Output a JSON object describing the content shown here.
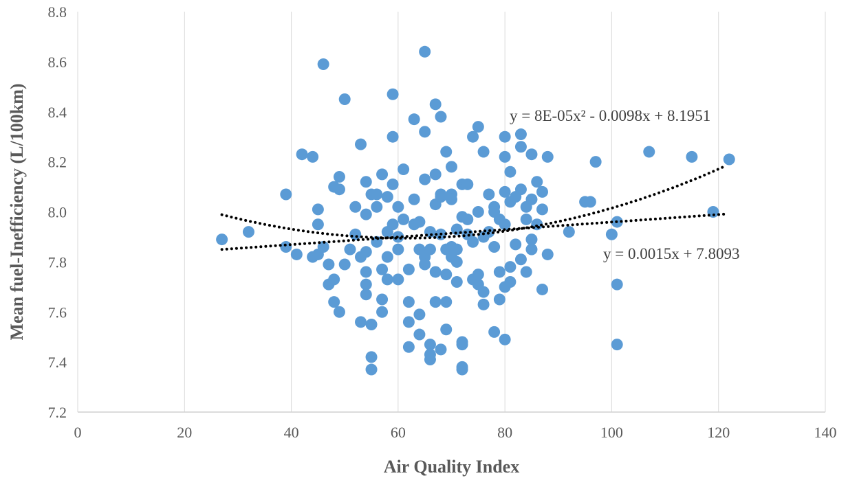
{
  "chart_data": {
    "type": "scatter",
    "title": "",
    "xlabel": "Air Quality Index",
    "ylabel": "Mean fuel-Inefficiency (L/100km)",
    "xlim": [
      0,
      140
    ],
    "ylim": [
      7.2,
      8.8
    ],
    "x_ticks": [
      "0",
      "20",
      "40",
      "60",
      "80",
      "100",
      "120",
      "140"
    ],
    "y_ticks": [
      "7.2",
      "7.4",
      "7.6",
      "7.8",
      "8.0",
      "8.2",
      "8.4",
      "8.6",
      "8.8"
    ],
    "grid": "vertical",
    "legend": "none",
    "point_color": "#5B9BD5",
    "points": [
      [
        27,
        7.89
      ],
      [
        32,
        7.92
      ],
      [
        39,
        7.86
      ],
      [
        39,
        8.07
      ],
      [
        41,
        7.83
      ],
      [
        42,
        8.23
      ],
      [
        44,
        8.22
      ],
      [
        44,
        7.82
      ],
      [
        45,
        7.95
      ],
      [
        45,
        8.01
      ],
      [
        45,
        7.83
      ],
      [
        46,
        7.86
      ],
      [
        46,
        8.59
      ],
      [
        47,
        7.71
      ],
      [
        47,
        7.79
      ],
      [
        48,
        7.73
      ],
      [
        48,
        7.64
      ],
      [
        48,
        8.1
      ],
      [
        49,
        8.09
      ],
      [
        49,
        8.14
      ],
      [
        49,
        7.6
      ],
      [
        50,
        7.79
      ],
      [
        50,
        8.45
      ],
      [
        51,
        7.85
      ],
      [
        52,
        8.02
      ],
      [
        52,
        7.91
      ],
      [
        53,
        7.82
      ],
      [
        53,
        7.56
      ],
      [
        53,
        8.27
      ],
      [
        54,
        8.12
      ],
      [
        54,
        7.99
      ],
      [
        54,
        7.84
      ],
      [
        54,
        7.71
      ],
      [
        54,
        7.76
      ],
      [
        54,
        7.67
      ],
      [
        55,
        7.55
      ],
      [
        55,
        7.42
      ],
      [
        55,
        7.37
      ],
      [
        55,
        8.07
      ],
      [
        56,
        8.02
      ],
      [
        56,
        8.07
      ],
      [
        56,
        7.88
      ],
      [
        57,
        7.65
      ],
      [
        57,
        7.6
      ],
      [
        57,
        8.15
      ],
      [
        57,
        7.77
      ],
      [
        58,
        8.06
      ],
      [
        58,
        7.92
      ],
      [
        58,
        7.82
      ],
      [
        58,
        7.73
      ],
      [
        59,
        8.47
      ],
      [
        59,
        8.3
      ],
      [
        59,
        8.11
      ],
      [
        59,
        7.95
      ],
      [
        60,
        8.02
      ],
      [
        60,
        7.9
      ],
      [
        60,
        7.85
      ],
      [
        60,
        7.73
      ],
      [
        61,
        8.17
      ],
      [
        61,
        7.97
      ],
      [
        62,
        7.46
      ],
      [
        62,
        7.64
      ],
      [
        62,
        7.77
      ],
      [
        62,
        7.56
      ],
      [
        63,
        8.37
      ],
      [
        63,
        8.05
      ],
      [
        63,
        7.95
      ],
      [
        64,
        7.59
      ],
      [
        64,
        7.85
      ],
      [
        64,
        7.96
      ],
      [
        64,
        7.51
      ],
      [
        65,
        8.32
      ],
      [
        65,
        8.13
      ],
      [
        65,
        7.82
      ],
      [
        65,
        7.79
      ],
      [
        65,
        8.64
      ],
      [
        66,
        7.41
      ],
      [
        66,
        7.92
      ],
      [
        66,
        7.85
      ],
      [
        66,
        7.47
      ],
      [
        66,
        7.43
      ],
      [
        67,
        7.64
      ],
      [
        67,
        8.15
      ],
      [
        67,
        8.03
      ],
      [
        67,
        7.76
      ],
      [
        67,
        8.43
      ],
      [
        68,
        8.06
      ],
      [
        68,
        8.07
      ],
      [
        68,
        7.91
      ],
      [
        68,
        7.45
      ],
      [
        68,
        8.38
      ],
      [
        69,
        7.53
      ],
      [
        69,
        7.85
      ],
      [
        69,
        8.24
      ],
      [
        69,
        7.64
      ],
      [
        69,
        7.75
      ],
      [
        70,
        8.18
      ],
      [
        70,
        8.07
      ],
      [
        70,
        8.05
      ],
      [
        70,
        7.86
      ],
      [
        70,
        7.82
      ],
      [
        71,
        7.93
      ],
      [
        71,
        7.72
      ],
      [
        71,
        7.8
      ],
      [
        71,
        7.85
      ],
      [
        72,
        8.11
      ],
      [
        72,
        7.98
      ],
      [
        72,
        7.47
      ],
      [
        72,
        7.48
      ],
      [
        72,
        7.37
      ],
      [
        72,
        7.38
      ],
      [
        73,
        8.11
      ],
      [
        73,
        7.97
      ],
      [
        73,
        7.91
      ],
      [
        74,
        8.3
      ],
      [
        74,
        7.73
      ],
      [
        74,
        7.88
      ],
      [
        75,
        8.34
      ],
      [
        75,
        7.75
      ],
      [
        75,
        8.0
      ],
      [
        75,
        7.71
      ],
      [
        76,
        7.9
      ],
      [
        76,
        7.68
      ],
      [
        76,
        7.63
      ],
      [
        76,
        8.24
      ],
      [
        77,
        8.07
      ],
      [
        77,
        7.92
      ],
      [
        78,
        8.02
      ],
      [
        78,
        8.0
      ],
      [
        78,
        7.86
      ],
      [
        78,
        7.52
      ],
      [
        79,
        7.65
      ],
      [
        79,
        7.76
      ],
      [
        79,
        7.97
      ],
      [
        80,
        8.22
      ],
      [
        80,
        8.3
      ],
      [
        80,
        8.08
      ],
      [
        80,
        7.95
      ],
      [
        80,
        7.49
      ],
      [
        80,
        7.7
      ],
      [
        81,
        8.16
      ],
      [
        81,
        7.78
      ],
      [
        81,
        8.04
      ],
      [
        81,
        7.72
      ],
      [
        82,
        7.87
      ],
      [
        82,
        8.06
      ],
      [
        83,
        8.31
      ],
      [
        83,
        8.26
      ],
      [
        83,
        7.81
      ],
      [
        83,
        8.09
      ],
      [
        84,
        7.97
      ],
      [
        84,
        8.02
      ],
      [
        84,
        7.76
      ],
      [
        85,
        8.23
      ],
      [
        85,
        8.05
      ],
      [
        85,
        7.89
      ],
      [
        85,
        7.85
      ],
      [
        86,
        7.95
      ],
      [
        86,
        8.12
      ],
      [
        87,
        8.08
      ],
      [
        87,
        8.01
      ],
      [
        87,
        7.69
      ],
      [
        88,
        8.22
      ],
      [
        88,
        7.83
      ],
      [
        92,
        7.92
      ],
      [
        95,
        8.04
      ],
      [
        96,
        8.04
      ],
      [
        97,
        8.2
      ],
      [
        100,
        7.91
      ],
      [
        101,
        7.71
      ],
      [
        101,
        7.96
      ],
      [
        101,
        7.47
      ],
      [
        107,
        8.24
      ],
      [
        115,
        8.22
      ],
      [
        119,
        8.0
      ],
      [
        122,
        8.21
      ]
    ],
    "trendlines": [
      {
        "kind": "polynomial",
        "equation": "y = 8E-05x² - 0.0098x + 8.1951",
        "coefficients": [
          8e-05,
          -0.0098,
          8.1951
        ],
        "x_range": [
          27,
          121
        ],
        "color": "#000000"
      },
      {
        "kind": "linear",
        "equation": "y = 0.0015x + 7.8093",
        "coefficients": [
          0,
          0.0015,
          7.8093
        ],
        "x_range": [
          27,
          121
        ],
        "color": "#000000"
      }
    ]
  }
}
